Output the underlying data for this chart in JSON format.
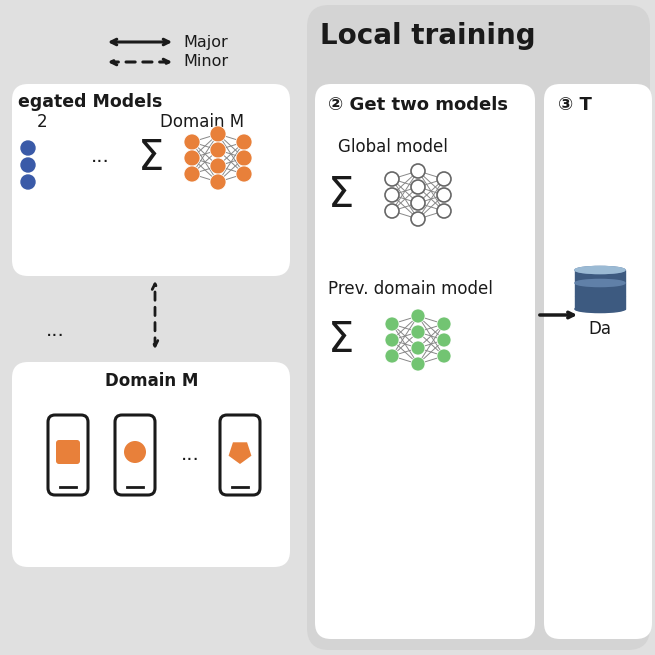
{
  "bg": "#e0e0e0",
  "white": "#ffffff",
  "panel_gray": "#d4d4d4",
  "orange": "#E8803A",
  "blue": "#3A5AA8",
  "green": "#72C472",
  "dark": "#1a1a1a",
  "db_dark": "#3D5A80",
  "db_mid": "#6080A8",
  "db_light": "#9BBAD4",
  "legend_major": "Major",
  "legend_minor": "Minor",
  "title_local": "Local training",
  "label_agg": "egated Models",
  "label_d2": "2",
  "label_dM_top": "Domain M",
  "label_dM_bot": "Domain M",
  "label_step2": "② Get two models",
  "label_step3": "③ T",
  "label_global": "Global model",
  "label_prev": "Prev. domain model",
  "label_da": "Da"
}
